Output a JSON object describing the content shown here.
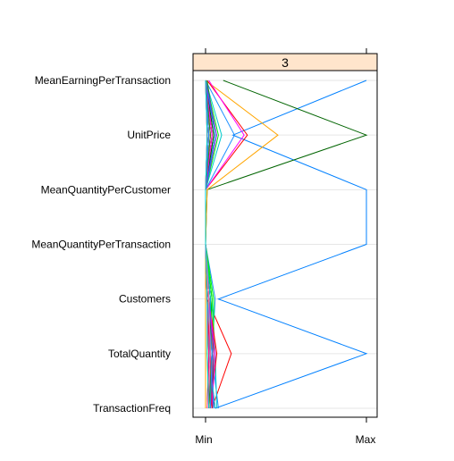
{
  "chart_data": {
    "type": "parallel_coordinates",
    "panel_label": "3",
    "variables": [
      "MeanEarningPerTransaction",
      "UnitPrice",
      "MeanQuantityPerCustomer",
      "MeanQuantityPerTransaction",
      "Customers",
      "TotalQuantity",
      "TransactionFreq"
    ],
    "scale_labels": {
      "min": "Min",
      "max": "Max"
    },
    "value_range": [
      0,
      1
    ],
    "grid": true,
    "colors": {
      "strip_fill": "#ffe5cc",
      "frame": "#000000",
      "grid": "#e6e6e6",
      "palette": [
        "#0080ff",
        "#ff00ff",
        "#006400",
        "#ff0000",
        "#ffa500",
        "#00ff00",
        "#a52a2a",
        "#ff69b4",
        "#00cccc",
        "#8a2be2",
        "#228b22",
        "#dc143c",
        "#1e90ff",
        "#9acd32",
        "#ff1493",
        "#00ced1"
      ]
    },
    "series": [
      {
        "color": "#0080ff",
        "values": [
          1.0,
          0.17,
          1.0,
          1.0,
          0.08,
          1.0,
          0.06
        ]
      },
      {
        "color": "#006400",
        "values": [
          0.11,
          1.0,
          0.01,
          0.0,
          0.0,
          0.0,
          0.0
        ]
      },
      {
        "color": "#ffa500",
        "values": [
          0.0,
          0.45,
          0.01,
          0.0,
          0.0,
          0.0,
          0.0
        ]
      },
      {
        "color": "#ff0000",
        "values": [
          0.01,
          0.26,
          0.0,
          0.0,
          0.01,
          0.16,
          0.04
        ]
      },
      {
        "color": "#ff00ff",
        "values": [
          0.02,
          0.24,
          0.0,
          0.0,
          0.02,
          0.02,
          0.01
        ]
      },
      {
        "color": "#1e90ff",
        "values": [
          0.0,
          0.18,
          0.0,
          0.0,
          0.06,
          0.04,
          0.08
        ]
      },
      {
        "color": "#00cccc",
        "values": [
          0.0,
          0.1,
          0.0,
          0.0,
          0.04,
          0.06,
          0.07
        ]
      },
      {
        "color": "#00ff00",
        "values": [
          0.0,
          0.08,
          0.0,
          0.0,
          0.05,
          0.05,
          0.04
        ]
      },
      {
        "color": "#228b22",
        "values": [
          0.01,
          0.06,
          0.0,
          0.0,
          0.03,
          0.03,
          0.05
        ]
      },
      {
        "color": "#a52a2a",
        "values": [
          0.0,
          0.05,
          0.0,
          0.0,
          0.02,
          0.04,
          0.03
        ]
      },
      {
        "color": "#8a2be2",
        "values": [
          0.0,
          0.07,
          0.0,
          0.0,
          0.04,
          0.02,
          0.06
        ]
      },
      {
        "color": "#dc143c",
        "values": [
          0.0,
          0.04,
          0.0,
          0.0,
          0.01,
          0.05,
          0.02
        ]
      },
      {
        "color": "#9acd32",
        "values": [
          0.0,
          0.03,
          0.0,
          0.0,
          0.03,
          0.06,
          0.03
        ]
      },
      {
        "color": "#ff1493",
        "values": [
          0.0,
          0.03,
          0.0,
          0.0,
          0.02,
          0.03,
          0.05
        ]
      },
      {
        "color": "#00ced1",
        "values": [
          0.0,
          0.02,
          0.0,
          0.0,
          0.01,
          0.02,
          0.02
        ]
      },
      {
        "color": "#ff69b4",
        "values": [
          0.0,
          0.02,
          0.0,
          0.0,
          0.02,
          0.04,
          0.01
        ]
      },
      {
        "color": "#006400",
        "values": [
          0.0,
          0.05,
          0.0,
          0.0,
          0.03,
          0.05,
          0.04
        ]
      },
      {
        "color": "#ff0000",
        "values": [
          0.0,
          0.04,
          0.0,
          0.0,
          0.02,
          0.07,
          0.03
        ]
      },
      {
        "color": "#0080ff",
        "values": [
          0.0,
          0.06,
          0.0,
          0.0,
          0.03,
          0.03,
          0.05
        ]
      },
      {
        "color": "#ffa500",
        "values": [
          0.0,
          0.03,
          0.0,
          0.0,
          0.01,
          0.05,
          0.02
        ]
      },
      {
        "color": "#00ff00",
        "values": [
          0.0,
          0.02,
          0.0,
          0.0,
          0.04,
          0.03,
          0.03
        ]
      },
      {
        "color": "#ff00ff",
        "values": [
          0.0,
          0.04,
          0.0,
          0.0,
          0.02,
          0.06,
          0.04
        ]
      },
      {
        "color": "#a52a2a",
        "values": [
          0.0,
          0.01,
          0.0,
          0.0,
          0.01,
          0.02,
          0.01
        ]
      },
      {
        "color": "#228b22",
        "values": [
          0.0,
          0.03,
          0.0,
          0.0,
          0.02,
          0.04,
          0.02
        ]
      },
      {
        "color": "#00cccc",
        "values": [
          0.0,
          0.02,
          0.0,
          0.0,
          0.03,
          0.02,
          0.06
        ]
      },
      {
        "color": "#8a2be2",
        "values": [
          0.0,
          0.01,
          0.0,
          0.0,
          0.02,
          0.05,
          0.03
        ]
      },
      {
        "color": "#dc143c",
        "values": [
          0.0,
          0.02,
          0.0,
          0.0,
          0.01,
          0.03,
          0.04
        ]
      },
      {
        "color": "#9acd32",
        "values": [
          0.0,
          0.01,
          0.0,
          0.0,
          0.02,
          0.01,
          0.02
        ]
      },
      {
        "color": "#1e90ff",
        "values": [
          0.0,
          0.02,
          0.0,
          0.0,
          0.01,
          0.04,
          0.03
        ]
      },
      {
        "color": "#ff1493",
        "values": [
          0.0,
          0.01,
          0.0,
          0.0,
          0.01,
          0.02,
          0.02
        ]
      },
      {
        "color": "#ff69b4",
        "values": [
          0.0,
          0.01,
          0.0,
          0.0,
          0.02,
          0.03,
          0.01
        ]
      },
      {
        "color": "#00ced1",
        "values": [
          0.0,
          0.01,
          0.0,
          0.0,
          0.01,
          0.01,
          0.02
        ]
      }
    ]
  }
}
